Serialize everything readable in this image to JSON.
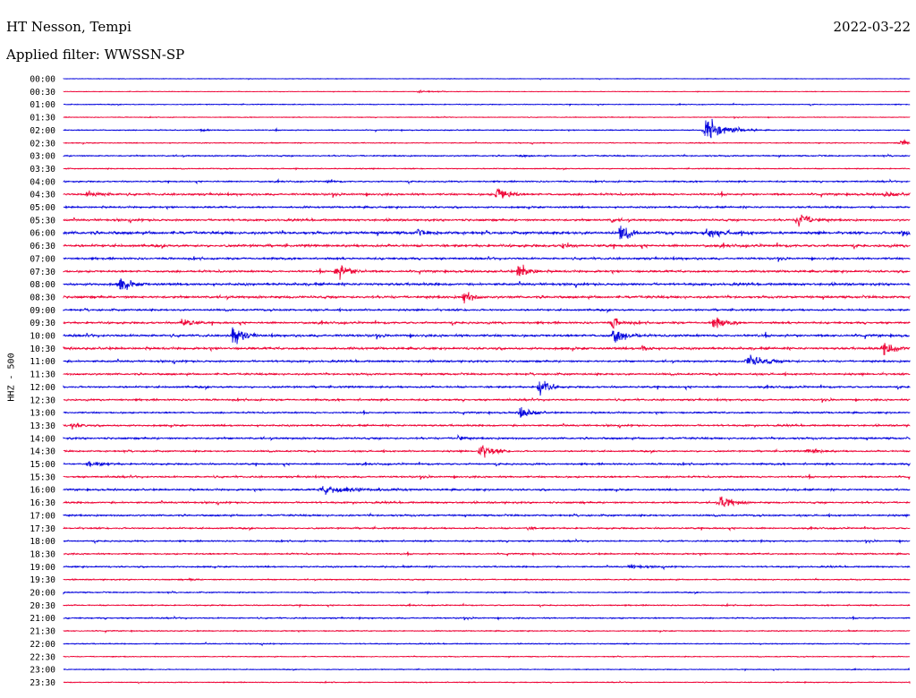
{
  "header": {
    "station": "HT Nesson, Tempi",
    "date": "2022-03-22",
    "filter_label": "Applied filter: WWSSN-SP"
  },
  "chart_data": {
    "type": "line",
    "title": "HT Nesson, Tempi",
    "ylabel": "HHZ - 500",
    "colors": {
      "even": "#0000dd",
      "odd": "#ee0033"
    },
    "rows": [
      "00:00",
      "00:30",
      "01:00",
      "01:30",
      "02:00",
      "02:30",
      "03:00",
      "03:30",
      "04:00",
      "04:30",
      "05:00",
      "05:30",
      "06:00",
      "06:30",
      "07:00",
      "07:30",
      "08:00",
      "08:30",
      "09:00",
      "09:30",
      "10:00",
      "10:30",
      "11:00",
      "11:30",
      "12:00",
      "12:30",
      "13:00",
      "13:30",
      "14:00",
      "14:30",
      "15:00",
      "15:30",
      "16:00",
      "16:30",
      "17:00",
      "17:30",
      "18:00",
      "18:30",
      "19:00",
      "19:30",
      "20:00",
      "20:30",
      "21:00",
      "21:30",
      "22:00",
      "22:30",
      "23:00",
      "23:30"
    ],
    "noise": [
      0.3,
      0.3,
      0.5,
      0.4,
      0.6,
      0.5,
      0.8,
      0.6,
      0.9,
      1.3,
      1.1,
      1.3,
      1.8,
      1.6,
      1.3,
      1.3,
      1.5,
      1.5,
      1.2,
      1.3,
      1.5,
      1.4,
      1.2,
      1.2,
      1.2,
      1.1,
      1.0,
      1.1,
      1.2,
      1.0,
      1.1,
      1.1,
      1.1,
      1.1,
      1.1,
      1.0,
      0.9,
      0.9,
      0.9,
      0.7,
      0.7,
      0.7,
      0.8,
      0.6,
      0.6,
      0.5,
      0.5,
      0.5
    ],
    "events": [
      {
        "row": 1,
        "t": 0.42,
        "a": 2,
        "d": 0.012
      },
      {
        "row": 4,
        "t": 0.162,
        "a": 2,
        "d": 0.008
      },
      {
        "row": 4,
        "t": 0.76,
        "a": 17,
        "d": 0.02
      },
      {
        "row": 5,
        "t": 0.99,
        "a": 6,
        "d": 0.01
      },
      {
        "row": 6,
        "t": 0.54,
        "a": 2,
        "d": 0.006
      },
      {
        "row": 8,
        "t": 0.31,
        "a": 2,
        "d": 0.008
      },
      {
        "row": 9,
        "t": 0.028,
        "a": 5,
        "d": 0.015
      },
      {
        "row": 9,
        "t": 0.512,
        "a": 14,
        "d": 0.01
      },
      {
        "row": 9,
        "t": 0.97,
        "a": 4,
        "d": 0.012
      },
      {
        "row": 11,
        "t": 0.647,
        "a": 4,
        "d": 0.005
      },
      {
        "row": 11,
        "t": 0.868,
        "a": 13,
        "d": 0.012
      },
      {
        "row": 12,
        "t": 0.417,
        "a": 5,
        "d": 0.01
      },
      {
        "row": 12,
        "t": 0.658,
        "a": 17,
        "d": 0.008
      },
      {
        "row": 12,
        "t": 0.76,
        "a": 6,
        "d": 0.02
      },
      {
        "row": 12,
        "t": 0.99,
        "a": 6,
        "d": 0.012
      },
      {
        "row": 13,
        "t": 0.59,
        "a": 8,
        "d": 0.006
      },
      {
        "row": 15,
        "t": 0.323,
        "a": 15,
        "d": 0.012
      },
      {
        "row": 15,
        "t": 0.538,
        "a": 12,
        "d": 0.01
      },
      {
        "row": 16,
        "t": 0.066,
        "a": 10,
        "d": 0.012
      },
      {
        "row": 17,
        "t": 0.473,
        "a": 14,
        "d": 0.008
      },
      {
        "row": 19,
        "t": 0.14,
        "a": 10,
        "d": 0.009
      },
      {
        "row": 19,
        "t": 0.648,
        "a": 10,
        "d": 0.01
      },
      {
        "row": 19,
        "t": 0.768,
        "a": 13,
        "d": 0.01
      },
      {
        "row": 20,
        "t": 0.2,
        "a": 16,
        "d": 0.01
      },
      {
        "row": 20,
        "t": 0.65,
        "a": 14,
        "d": 0.012
      },
      {
        "row": 21,
        "t": 0.684,
        "a": 7,
        "d": 0.006
      },
      {
        "row": 21,
        "t": 0.97,
        "a": 10,
        "d": 0.014
      },
      {
        "row": 22,
        "t": 0.81,
        "a": 9,
        "d": 0.02
      },
      {
        "row": 24,
        "t": 0.562,
        "a": 18,
        "d": 0.009
      },
      {
        "row": 26,
        "t": 0.54,
        "a": 13,
        "d": 0.01
      },
      {
        "row": 27,
        "t": 0.01,
        "a": 6,
        "d": 0.008
      },
      {
        "row": 28,
        "t": 0.466,
        "a": 7,
        "d": 0.005
      },
      {
        "row": 29,
        "t": 0.493,
        "a": 13,
        "d": 0.012
      },
      {
        "row": 29,
        "t": 0.88,
        "a": 5,
        "d": 0.012
      },
      {
        "row": 30,
        "t": 0.03,
        "a": 4,
        "d": 0.015
      },
      {
        "row": 32,
        "t": 0.31,
        "a": 6,
        "d": 0.035
      },
      {
        "row": 33,
        "t": 0.777,
        "a": 12,
        "d": 0.012
      },
      {
        "row": 35,
        "t": 0.548,
        "a": 4,
        "d": 0.005
      },
      {
        "row": 38,
        "t": 0.67,
        "a": 4,
        "d": 0.012
      },
      {
        "row": 39,
        "t": 0.15,
        "a": 3,
        "d": 0.004
      }
    ]
  }
}
